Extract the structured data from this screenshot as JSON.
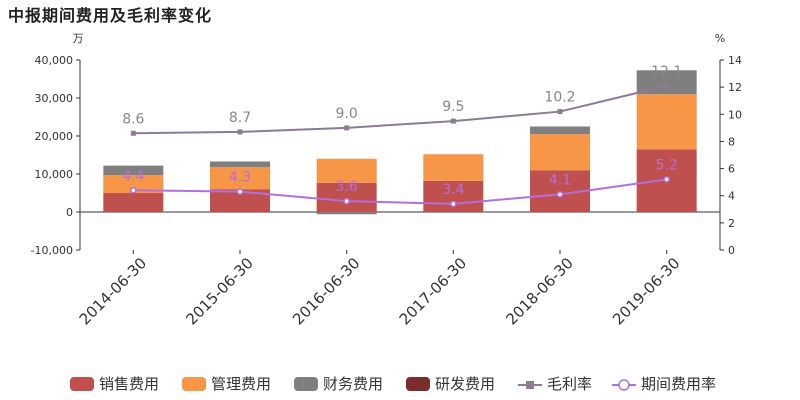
{
  "title": "中报期间费用及毛利率变化",
  "chart_data": {
    "type": "bar",
    "stacked": true,
    "categories": [
      "2014-06-30",
      "2015-06-30",
      "2016-06-30",
      "2017-06-30",
      "2018-06-30",
      "2019-06-30"
    ],
    "left_axis": {
      "unit": "万",
      "ylim": [
        -10000,
        40000
      ],
      "ticks": [
        -10000,
        0,
        10000,
        20000,
        30000,
        40000
      ],
      "tick_labels": [
        "-10,000",
        "0",
        "10,000",
        "20,000",
        "30,000",
        "40,000"
      ]
    },
    "right_axis": {
      "unit": "%",
      "ylim": [
        0,
        14
      ],
      "ticks": [
        0,
        2,
        4,
        6,
        8,
        10,
        12,
        14
      ],
      "tick_labels": [
        "0",
        "2",
        "4",
        "6",
        "8",
        "10",
        "12",
        "14"
      ]
    },
    "series": [
      {
        "name": "销售费用",
        "kind": "bar",
        "axis": "left",
        "color": "#c0504d",
        "values": [
          5000,
          6000,
          7700,
          8200,
          11000,
          16500
        ]
      },
      {
        "name": "管理费用",
        "kind": "bar",
        "axis": "left",
        "color": "#f79646",
        "values": [
          4700,
          5800,
          6300,
          7000,
          9500,
          14500
        ]
      },
      {
        "name": "财务费用",
        "kind": "bar",
        "axis": "left",
        "color": "#7f7f7f",
        "values": [
          2500,
          1500,
          -600,
          0,
          2000,
          6300
        ]
      },
      {
        "name": "研发费用",
        "kind": "bar",
        "axis": "left",
        "color": "#7b2c2c",
        "values": [
          0,
          0,
          0,
          0,
          0,
          0
        ]
      },
      {
        "name": "毛利率",
        "kind": "line",
        "axis": "right",
        "color": "#8c7a96",
        "marker": "square",
        "values": [
          8.6,
          8.7,
          9.0,
          9.5,
          10.2,
          12.1
        ],
        "labels": [
          "8.6",
          "8.7",
          "9.0",
          "9.5",
          "10.2",
          "12.1"
        ]
      },
      {
        "name": "期间费用率",
        "kind": "line",
        "axis": "right",
        "color": "#b36ee0",
        "marker": "circle",
        "values": [
          4.4,
          4.3,
          3.6,
          3.4,
          4.1,
          5.2
        ],
        "labels": [
          "4.4",
          "4.3",
          "3.6",
          "3.4",
          "4.1",
          "5.2"
        ]
      }
    ],
    "grid": false,
    "legend_position": "bottom"
  }
}
